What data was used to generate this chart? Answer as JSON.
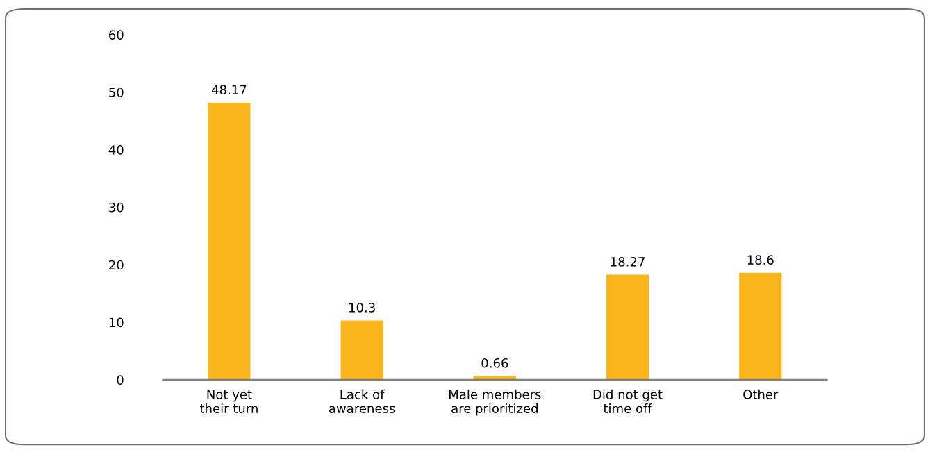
{
  "chart_data": {
    "type": "bar",
    "categories": [
      "Not yet\ntheir turn",
      "Lack of\nawareness",
      "Male members\nare prioritized",
      "Did not get\ntime off",
      "Other"
    ],
    "values": [
      48.17,
      10.3,
      0.66,
      18.27,
      18.6
    ],
    "color": "#fbb61d",
    "ylim": [
      0,
      60
    ],
    "yticks": [
      0,
      10,
      20,
      30,
      40,
      50,
      60
    ],
    "data_labels": true,
    "grid": false,
    "legend": false
  }
}
